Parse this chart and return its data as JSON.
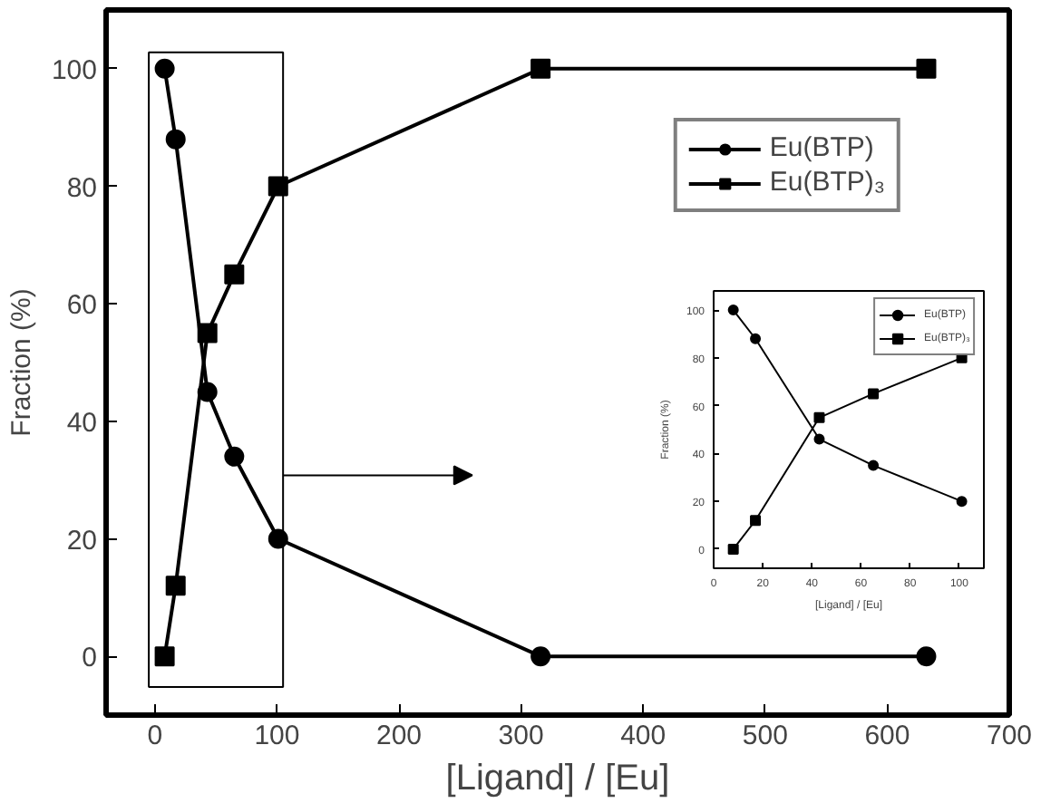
{
  "chart_data": [
    {
      "type": "line",
      "xlabel": "[Ligand] / [Eu]",
      "ylabel": "Fraction (%)",
      "x": [
        8,
        17,
        43,
        65,
        101,
        316,
        632
      ],
      "xlim": [
        -40,
        700
      ],
      "xticks": [
        0,
        100,
        200,
        300,
        400,
        500,
        600,
        700
      ],
      "ylim": [
        -10,
        110
      ],
      "yticks": [
        0,
        20,
        40,
        60,
        80,
        100
      ],
      "grid": false,
      "legend": "top right",
      "series": [
        {
          "name": "Eu(BTP)",
          "color": "#000000",
          "marker": "circle",
          "values": [
            100,
            88,
            45,
            34,
            20,
            0,
            0
          ]
        },
        {
          "name": "Eu(BTP)₃",
          "color": "#000000",
          "marker": "square",
          "values": [
            0,
            12,
            55,
            65,
            80,
            100,
            100
          ]
        }
      ]
    },
    {
      "type": "line",
      "xlabel": "[Ligand] / [Eu]",
      "ylabel": "Fraction (%)",
      "x": [
        8,
        17,
        43,
        65,
        101
      ],
      "xlim": [
        0,
        110
      ],
      "xticks": [
        0,
        20,
        40,
        60,
        80,
        100
      ],
      "ylim": [
        -8,
        108
      ],
      "yticks": [
        0,
        20,
        40,
        60,
        80,
        100
      ],
      "grid": false,
      "legend": "top right",
      "series": [
        {
          "name": "Eu(BTP)",
          "color": "#000000",
          "marker": "circle",
          "values": [
            100,
            88,
            46,
            35,
            20
          ]
        },
        {
          "name": "Eu(BTP)₃",
          "color": "#000000",
          "marker": "square",
          "values": [
            0,
            12,
            55,
            65,
            80
          ]
        }
      ]
    }
  ]
}
